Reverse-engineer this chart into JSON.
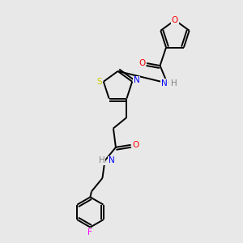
{
  "background_color": "#e8e8e8",
  "bond_color": "#000000",
  "atom_colors": {
    "O": "#ff0000",
    "N": "#0000ff",
    "S": "#cccc00",
    "F": "#ff00ff",
    "H": "#808080",
    "C": "#000000"
  },
  "figsize": [
    3.0,
    3.0
  ],
  "dpi": 100,
  "xlim": [
    0,
    10
  ],
  "ylim": [
    0,
    10
  ],
  "lw": 1.4,
  "fontsize": 7.5
}
